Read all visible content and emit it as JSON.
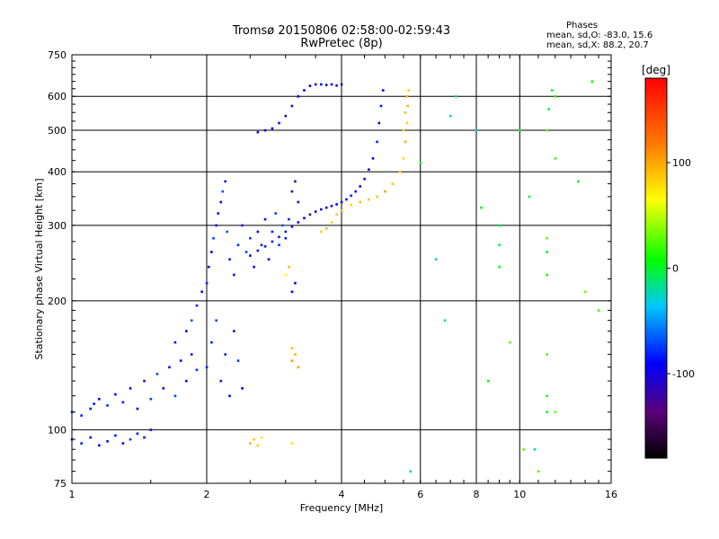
{
  "chart_data": {
    "type": "scatter",
    "title": "Tromsø 20150806 02:58:00-02:59:43",
    "subtitle": "RwPretec (8p)",
    "xlabel": "Frequency [MHz]",
    "ylabel": "Stationary phase Virtual Height [km]",
    "xscale": "log",
    "yscale": "log",
    "xlim": [
      1,
      16
    ],
    "ylim": [
      75,
      750
    ],
    "xticks": [
      1,
      2,
      4,
      6,
      8,
      10,
      16
    ],
    "yticks": [
      75,
      100,
      200,
      300,
      400,
      500,
      600,
      750
    ],
    "grid": true,
    "phases_box": {
      "title": "Phases",
      "line1": "mean, sd,O: -83.0, 15.6",
      "line2": "mean, sd,X:  88.2, 20.7"
    },
    "colorbar": {
      "label": "[deg]",
      "ticks": [
        "100",
        "0",
        "-100"
      ],
      "tick_values": [
        100,
        0,
        -100
      ],
      "range": [
        -180,
        180
      ],
      "colormap": "rainbow"
    },
    "series": [
      {
        "trace": "o_low_e",
        "phase": -85,
        "points": [
          [
            1.0,
            95
          ],
          [
            1.05,
            93
          ],
          [
            1.1,
            96
          ],
          [
            1.15,
            92
          ],
          [
            1.2,
            94
          ],
          [
            1.25,
            97
          ],
          [
            1.3,
            93
          ],
          [
            1.35,
            95
          ],
          [
            1.4,
            98
          ],
          [
            1.45,
            96
          ],
          [
            1.5,
            100
          ],
          [
            1.0,
            110
          ],
          [
            1.05,
            108
          ],
          [
            1.1,
            112
          ],
          [
            1.12,
            115
          ],
          [
            1.15,
            118
          ],
          [
            1.2,
            114
          ],
          [
            1.25,
            121
          ],
          [
            1.3,
            116
          ],
          [
            1.35,
            125
          ],
          [
            1.4,
            112
          ],
          [
            1.45,
            130
          ],
          [
            1.5,
            118
          ],
          [
            1.55,
            135
          ],
          [
            1.6,
            125
          ],
          [
            1.65,
            140
          ],
          [
            1.7,
            120
          ],
          [
            1.75,
            145
          ],
          [
            1.8,
            130
          ],
          [
            1.85,
            150
          ],
          [
            1.9,
            138
          ]
        ]
      },
      {
        "trace": "o_spread_f",
        "phase": -80,
        "points": [
          [
            1.7,
            160
          ],
          [
            1.8,
            170
          ],
          [
            1.85,
            180
          ],
          [
            1.9,
            195
          ],
          [
            1.95,
            210
          ],
          [
            2.0,
            220
          ],
          [
            2.02,
            240
          ],
          [
            2.05,
            260
          ],
          [
            2.07,
            280
          ],
          [
            2.1,
            300
          ],
          [
            2.12,
            320
          ],
          [
            2.15,
            340
          ],
          [
            2.17,
            360
          ],
          [
            2.2,
            380
          ],
          [
            2.22,
            290
          ],
          [
            2.25,
            250
          ],
          [
            2.3,
            230
          ],
          [
            2.35,
            270
          ],
          [
            2.4,
            300
          ],
          [
            2.45,
            260
          ],
          [
            2.5,
            280
          ],
          [
            2.55,
            240
          ],
          [
            2.6,
            290
          ],
          [
            2.65,
            270
          ],
          [
            2.7,
            310
          ],
          [
            2.75,
            250
          ],
          [
            2.8,
            290
          ],
          [
            2.85,
            320
          ],
          [
            2.9,
            270
          ],
          [
            2.95,
            300
          ],
          [
            3.0,
            280
          ],
          [
            3.05,
            310
          ],
          [
            2.0,
            140
          ],
          [
            2.05,
            160
          ],
          [
            2.1,
            180
          ],
          [
            2.15,
            130
          ],
          [
            2.2,
            150
          ],
          [
            2.25,
            120
          ],
          [
            2.3,
            170
          ],
          [
            2.35,
            145
          ],
          [
            2.4,
            125
          ]
        ]
      },
      {
        "trace": "o_f_layer",
        "phase": -95,
        "points": [
          [
            2.5,
            255
          ],
          [
            2.6,
            262
          ],
          [
            2.7,
            268
          ],
          [
            2.8,
            275
          ],
          [
            2.9,
            282
          ],
          [
            3.0,
            290
          ],
          [
            3.1,
            298
          ],
          [
            3.2,
            305
          ],
          [
            3.3,
            312
          ],
          [
            3.4,
            318
          ],
          [
            3.5,
            323
          ],
          [
            3.6,
            327
          ],
          [
            3.7,
            330
          ],
          [
            3.8,
            333
          ],
          [
            3.9,
            336
          ],
          [
            4.0,
            340
          ],
          [
            4.1,
            345
          ],
          [
            4.2,
            352
          ],
          [
            4.3,
            360
          ],
          [
            4.4,
            370
          ],
          [
            4.5,
            385
          ],
          [
            4.6,
            405
          ],
          [
            4.7,
            430
          ],
          [
            4.8,
            470
          ],
          [
            4.85,
            520
          ],
          [
            4.9,
            570
          ],
          [
            4.95,
            620
          ]
        ]
      },
      {
        "trace": "o_upper",
        "phase": -100,
        "points": [
          [
            2.6,
            495
          ],
          [
            2.7,
            500
          ],
          [
            2.8,
            505
          ],
          [
            2.9,
            520
          ],
          [
            3.0,
            540
          ],
          [
            3.1,
            570
          ],
          [
            3.2,
            600
          ],
          [
            3.3,
            620
          ],
          [
            3.4,
            635
          ],
          [
            3.5,
            640
          ],
          [
            3.6,
            640
          ],
          [
            3.7,
            638
          ],
          [
            3.8,
            640
          ],
          [
            3.9,
            636
          ],
          [
            4.0,
            640
          ],
          [
            3.1,
            360
          ],
          [
            3.15,
            380
          ],
          [
            3.2,
            340
          ],
          [
            3.1,
            210
          ],
          [
            3.15,
            220
          ]
        ]
      },
      {
        "trace": "x_f_layer",
        "phase": 95,
        "points": [
          [
            3.6,
            290
          ],
          [
            3.7,
            295
          ],
          [
            3.8,
            305
          ],
          [
            3.9,
            318
          ],
          [
            4.0,
            325
          ],
          [
            4.2,
            335
          ],
          [
            4.4,
            340
          ],
          [
            4.6,
            345
          ],
          [
            4.8,
            350
          ],
          [
            5.0,
            360
          ],
          [
            5.2,
            375
          ],
          [
            5.4,
            400
          ],
          [
            5.5,
            430
          ],
          [
            5.55,
            470
          ],
          [
            5.6,
            520
          ],
          [
            5.62,
            570
          ],
          [
            5.65,
            620
          ],
          [
            5.6,
            600
          ],
          [
            5.55,
            550
          ],
          [
            5.5,
            500
          ],
          [
            3.1,
            145
          ],
          [
            3.15,
            150
          ],
          [
            3.2,
            140
          ],
          [
            3.1,
            155
          ]
        ]
      },
      {
        "trace": "x_e",
        "phase": 80,
        "points": [
          [
            2.5,
            93
          ],
          [
            2.55,
            95
          ],
          [
            2.6,
            92
          ],
          [
            2.65,
            96
          ],
          [
            3.1,
            93
          ],
          [
            3.0,
            230
          ],
          [
            3.05,
            240
          ]
        ]
      },
      {
        "trace": "noise",
        "phase": 0,
        "points": [
          [
            5.7,
            80
          ],
          [
            6.5,
            250
          ],
          [
            6.8,
            180
          ],
          [
            7.2,
            600
          ],
          [
            8.0,
            500
          ],
          [
            8.2,
            330
          ],
          [
            9.0,
            300
          ],
          [
            9.0,
            270
          ],
          [
            9.0,
            240
          ],
          [
            9.5,
            160
          ],
          [
            10.0,
            500
          ],
          [
            10.5,
            350
          ],
          [
            10.8,
            90
          ],
          [
            11.0,
            80
          ],
          [
            11.5,
            120
          ],
          [
            11.5,
            110
          ],
          [
            11.5,
            150
          ],
          [
            11.5,
            230
          ],
          [
            11.5,
            260
          ],
          [
            11.5,
            280
          ],
          [
            11.5,
            500
          ],
          [
            11.6,
            560
          ],
          [
            11.8,
            620
          ],
          [
            12.0,
            600
          ],
          [
            12.0,
            430
          ],
          [
            12.0,
            110
          ],
          [
            13.5,
            380
          ],
          [
            14.0,
            210
          ],
          [
            14.5,
            650
          ],
          [
            15.0,
            190
          ],
          [
            6.0,
            420
          ],
          [
            7.0,
            540
          ],
          [
            10.2,
            90
          ],
          [
            8.5,
            130
          ]
        ]
      }
    ]
  }
}
